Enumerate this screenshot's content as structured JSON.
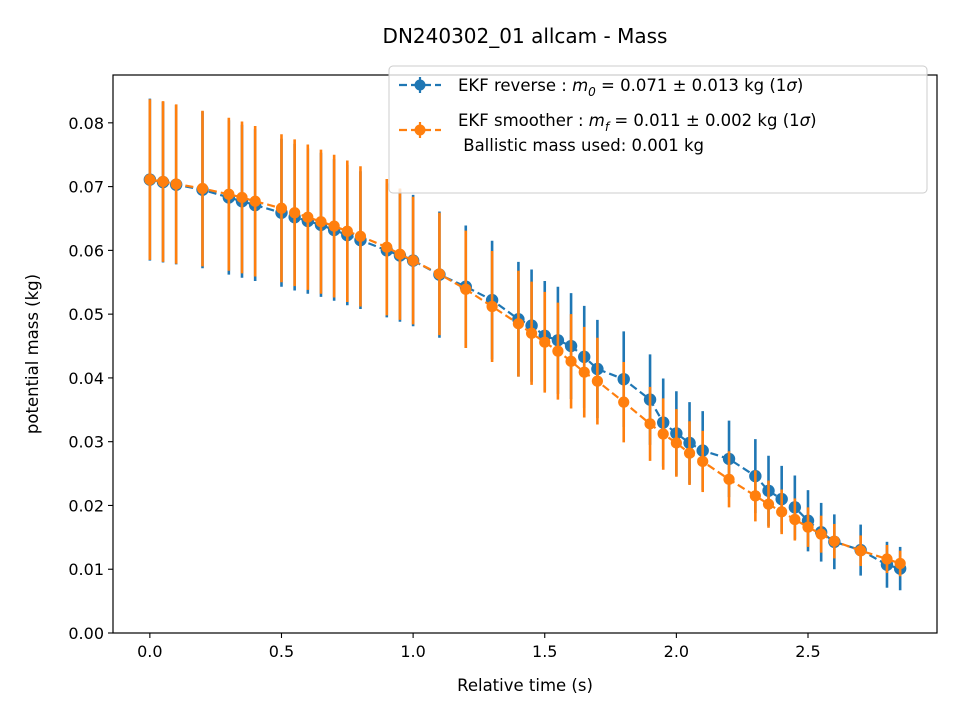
{
  "chart_data": {
    "type": "scatter",
    "title": "DN240302_01 allcam - Mass",
    "xlabel": "Relative time (s)",
    "ylabel": "potential mass (kg)",
    "xlim": [
      -0.14,
      2.99
    ],
    "ylim": [
      0.0,
      0.0875
    ],
    "x_ticks": [
      0.0,
      0.5,
      1.0,
      1.5,
      2.0,
      2.5
    ],
    "x_tick_labels": [
      "0.0",
      "0.5",
      "1.0",
      "1.5",
      "2.0",
      "2.5"
    ],
    "y_ticks": [
      0.0,
      0.01,
      0.02,
      0.03,
      0.04,
      0.05,
      0.06,
      0.07,
      0.08
    ],
    "y_tick_labels": [
      "0.00",
      "0.01",
      "0.02",
      "0.03",
      "0.04",
      "0.05",
      "0.06",
      "0.07",
      "0.08"
    ],
    "grid": false,
    "legend_position": "top-right",
    "x": [
      0.0,
      0.05,
      0.1,
      0.2,
      0.3,
      0.35,
      0.4,
      0.5,
      0.55,
      0.6,
      0.65,
      0.7,
      0.75,
      0.8,
      0.9,
      0.95,
      1.0,
      1.1,
      1.2,
      1.3,
      1.4,
      1.45,
      1.5,
      1.55,
      1.6,
      1.65,
      1.7,
      1.8,
      1.9,
      1.95,
      2.0,
      2.05,
      2.1,
      2.2,
      2.3,
      2.35,
      2.4,
      2.45,
      2.5,
      2.55,
      2.6,
      2.7,
      2.8,
      2.85
    ],
    "series": [
      {
        "name": "EKF reverse : m0 = 0.071 ± 0.013 kg (1σ)",
        "color": "#1f77b4",
        "y": [
          0.0711,
          0.0707,
          0.0703,
          0.0695,
          0.0683,
          0.0677,
          0.0671,
          0.0659,
          0.0652,
          0.0646,
          0.064,
          0.0632,
          0.0624,
          0.0616,
          0.06,
          0.0592,
          0.0584,
          0.0562,
          0.0543,
          0.0522,
          0.0492,
          0.0482,
          0.0466,
          0.0459,
          0.045,
          0.0433,
          0.0414,
          0.0398,
          0.0366,
          0.033,
          0.0313,
          0.0298,
          0.0286,
          0.0273,
          0.0246,
          0.0223,
          0.021,
          0.0197,
          0.0176,
          0.0158,
          0.0143,
          0.013,
          0.0107,
          0.0101
        ],
        "err": [
          0.0127,
          0.0126,
          0.0125,
          0.0123,
          0.0121,
          0.012,
          0.0119,
          0.0116,
          0.0115,
          0.0114,
          0.0113,
          0.0111,
          0.011,
          0.0108,
          0.0105,
          0.0104,
          0.0103,
          0.0099,
          0.0096,
          0.0093,
          0.009,
          0.0088,
          0.0086,
          0.0084,
          0.0083,
          0.008,
          0.0077,
          0.0075,
          0.0071,
          0.0069,
          0.0066,
          0.0064,
          0.0062,
          0.006,
          0.0058,
          0.0055,
          0.0052,
          0.005,
          0.0048,
          0.0046,
          0.0043,
          0.004,
          0.0036,
          0.0034
        ]
      },
      {
        "name": "EKF smoother : mf = 0.011 ± 0.002 kg (1σ)",
        "color": "#ff7f0e",
        "y": [
          0.0711,
          0.0708,
          0.0704,
          0.0697,
          0.0688,
          0.0683,
          0.0677,
          0.0666,
          0.0659,
          0.0652,
          0.0645,
          0.0638,
          0.063,
          0.0622,
          0.0605,
          0.0594,
          0.0584,
          0.0563,
          0.0539,
          0.0512,
          0.0485,
          0.047,
          0.0456,
          0.0442,
          0.0426,
          0.0409,
          0.0395,
          0.0362,
          0.0328,
          0.0312,
          0.0298,
          0.0282,
          0.0269,
          0.0241,
          0.0215,
          0.0202,
          0.019,
          0.0178,
          0.0166,
          0.0155,
          0.0144,
          0.0129,
          0.0116,
          0.0109
        ],
        "err": [
          0.0126,
          0.0126,
          0.0125,
          0.0122,
          0.012,
          0.0119,
          0.0118,
          0.0116,
          0.0115,
          0.0114,
          0.0113,
          0.0112,
          0.0111,
          0.011,
          0.0107,
          0.0103,
          0.01,
          0.0096,
          0.0092,
          0.0087,
          0.0083,
          0.0081,
          0.0079,
          0.0076,
          0.0074,
          0.0071,
          0.0068,
          0.0063,
          0.0058,
          0.0056,
          0.0053,
          0.005,
          0.0048,
          0.0044,
          0.004,
          0.0037,
          0.0035,
          0.0033,
          0.0031,
          0.0029,
          0.0027,
          0.0024,
          0.0022,
          0.002
        ]
      }
    ],
    "legend": [
      {
        "color": "#1f77b4",
        "prefix": "EKF reverse : ",
        "symbol": "m",
        "subscript": "0",
        "value": " =  0.071 ± 0.013 kg (1",
        "sigma": "σ",
        "close": ")"
      },
      {
        "color": "#ff7f0e",
        "prefix": "EKF smoother : ",
        "symbol": "m",
        "subscript": "f",
        "value": " =  0.011 ± 0.002 kg (1",
        "sigma": "σ",
        "close": ")",
        "note": " Ballistic mass used: 0.001 kg"
      }
    ]
  }
}
